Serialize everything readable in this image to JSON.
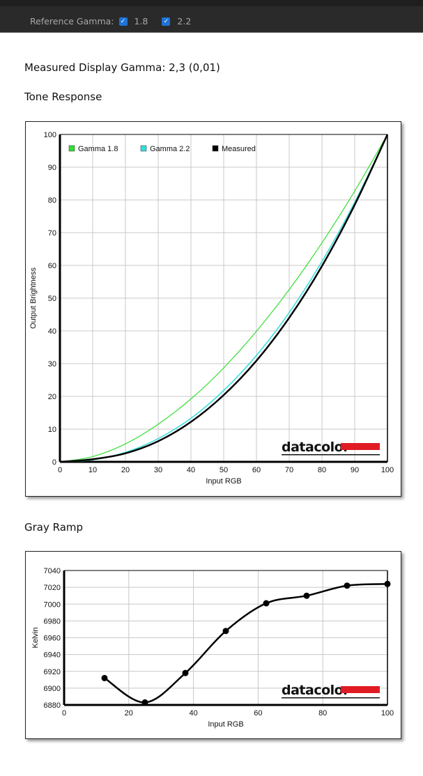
{
  "toolbar": {
    "reference_label": "Reference Gamma:",
    "options": [
      {
        "label": "1.8",
        "checked": true
      },
      {
        "label": "2.2",
        "checked": true
      }
    ]
  },
  "measured_text": "Measured Display Gamma: 2,3 (0,01)",
  "tone_title": "Tone Response",
  "gray_title": "Gray Ramp",
  "logo_text": "datacolor",
  "colors": {
    "gamma18": "#33dd33",
    "gamma22": "#33dddd",
    "measured": "#000000",
    "logo_red": "#e01b24"
  },
  "chart_data": [
    {
      "type": "line",
      "title": "Tone Response",
      "xlabel": "Input RGB",
      "ylabel": "Output Brightness",
      "xlim": [
        0,
        100
      ],
      "ylim": [
        0,
        100
      ],
      "xticks": [
        "0",
        "10",
        "20",
        "30",
        "40",
        "50",
        "60",
        "70",
        "80",
        "90",
        "100"
      ],
      "yticks": [
        "0",
        "10",
        "20",
        "30",
        "40",
        "50",
        "60",
        "70",
        "80",
        "90",
        "100"
      ],
      "x": [
        0,
        10,
        20,
        30,
        40,
        50,
        60,
        70,
        80,
        90,
        100
      ],
      "grid": true,
      "legend": "top-left",
      "series": [
        {
          "name": "Gamma 1.8",
          "values": [
            0,
            1.6,
            5.5,
            11.5,
            19.2,
            28.7,
            39.9,
            52.6,
            66.9,
            82.7,
            100
          ]
        },
        {
          "name": "Gamma 2.2",
          "values": [
            0,
            0.6,
            2.9,
            7.1,
            13.3,
            21.8,
            32.5,
            45.6,
            61.2,
            79.3,
            100
          ]
        },
        {
          "name": "Measured",
          "values": [
            0,
            0.8,
            2.6,
            6.3,
            12.2,
            20.4,
            30.9,
            44.0,
            59.8,
            78.5,
            100
          ]
        }
      ]
    },
    {
      "type": "line",
      "title": "Gray Ramp",
      "xlabel": "Input RGB",
      "ylabel": "Kelvin",
      "xlim": [
        0,
        100
      ],
      "ylim": [
        6880,
        7040
      ],
      "xticks": [
        "0",
        "20",
        "40",
        "60",
        "80",
        "100"
      ],
      "yticks": [
        "6880",
        "6900",
        "6920",
        "6940",
        "6960",
        "6980",
        "7000",
        "7020",
        "7040"
      ],
      "x": [
        12.5,
        25,
        37.5,
        50,
        62.5,
        75,
        87.5,
        100
      ],
      "grid": true,
      "series": [
        {
          "name": "Kelvin",
          "values": [
            6912,
            6883,
            6918,
            6968,
            7001,
            7010,
            7022,
            7024
          ]
        }
      ]
    }
  ]
}
